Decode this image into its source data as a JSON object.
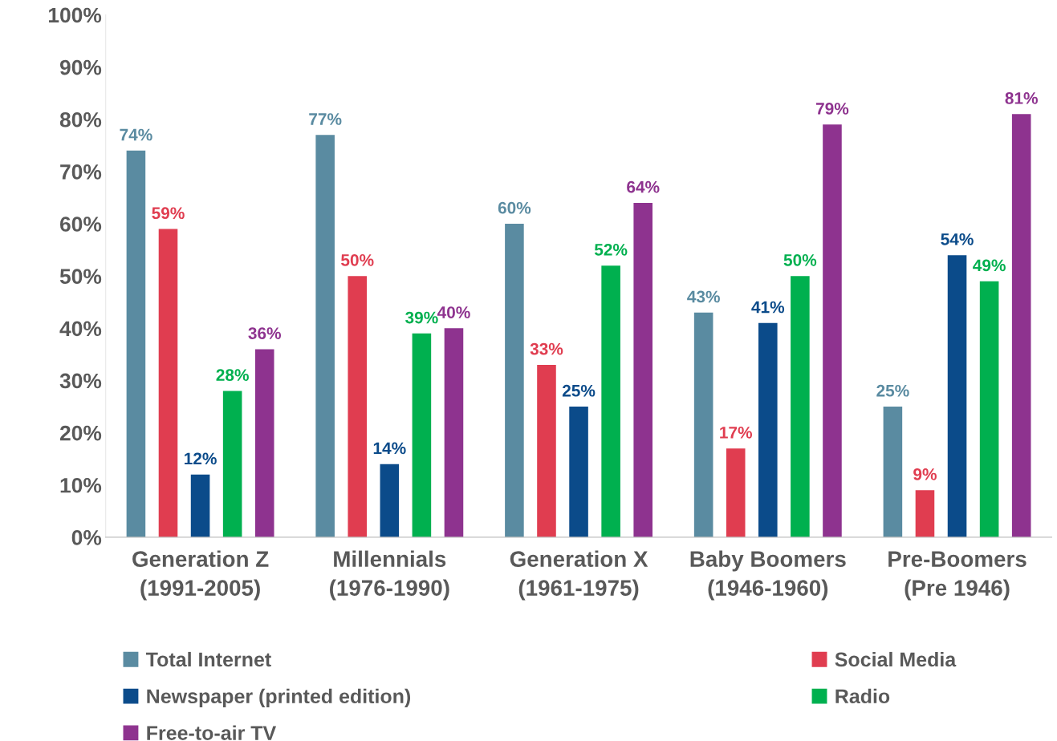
{
  "chart_data": {
    "type": "bar",
    "categories": [
      "Generation Z\n(1991-2005)",
      "Millennials\n(1976-1990)",
      "Generation X\n(1961-1975)",
      "Baby Boomers\n(1946-1960)",
      "Pre-Boomers\n(Pre 1946)"
    ],
    "series": [
      {
        "name": "Total Internet",
        "color": "#5a8ba1",
        "values": [
          74,
          77,
          60,
          43,
          25
        ],
        "value_labels": [
          "74%",
          "77%",
          "60%",
          "43%",
          "25%"
        ]
      },
      {
        "name": "Social Media",
        "color": "#e03d50",
        "values": [
          59,
          50,
          33,
          17,
          9
        ],
        "value_labels": [
          "59%",
          "50%",
          "33%",
          "17%",
          "9%"
        ]
      },
      {
        "name": "Newspaper (printed edition)",
        "color": "#0b4b8a",
        "values": [
          12,
          14,
          25,
          41,
          54
        ],
        "value_labels": [
          "12%",
          "14%",
          "25%",
          "41%",
          "54%"
        ]
      },
      {
        "name": "Radio",
        "color": "#00b04f",
        "values": [
          28,
          39,
          52,
          50,
          49
        ],
        "value_labels": [
          "28%",
          "39%",
          "52%",
          "50%",
          "49%"
        ]
      },
      {
        "name": "Free-to-air TV",
        "color": "#8e338f",
        "values": [
          36,
          40,
          64,
          79,
          81
        ],
        "value_labels": [
          "36%",
          "40%",
          "64%",
          "79%",
          "81%"
        ]
      }
    ],
    "ylim": [
      0,
      100
    ],
    "yticks": [
      {
        "value": 0,
        "label": "0%"
      },
      {
        "value": 10,
        "label": "10%"
      },
      {
        "value": 20,
        "label": "20%"
      },
      {
        "value": 30,
        "label": "30%"
      },
      {
        "value": 40,
        "label": "40%"
      },
      {
        "value": 50,
        "label": "50%"
      },
      {
        "value": 60,
        "label": "60%"
      },
      {
        "value": 70,
        "label": "70%"
      },
      {
        "value": 80,
        "label": "80%"
      },
      {
        "value": 90,
        "label": "90%"
      },
      {
        "value": 100,
        "label": "100%"
      }
    ],
    "grid": false,
    "legend": "bottom"
  }
}
